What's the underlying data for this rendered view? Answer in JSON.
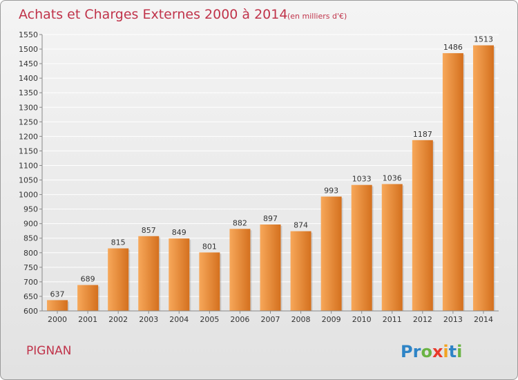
{
  "header": {
    "title": "Achats et Charges Externes 2000 à 2014",
    "subtitle": "(en milliers d'€)"
  },
  "footer": {
    "town": "PIGNAN",
    "brand": "Proxiti",
    "brand_letters": [
      {
        "ch": "P",
        "color": "#2e84c6"
      },
      {
        "ch": "r",
        "color": "#2e84c6"
      },
      {
        "ch": "o",
        "color": "#6ab344"
      },
      {
        "ch": "x",
        "color": "#e8392b"
      },
      {
        "ch": "i",
        "color": "#f2a321"
      },
      {
        "ch": "t",
        "color": "#2e84c6"
      },
      {
        "ch": "i",
        "color": "#6ab344"
      }
    ]
  },
  "colors": {
    "bar_light": "#f7a85a",
    "bar_dark": "#d4701e",
    "accent": "#c0334a",
    "grid": "#ffffff"
  },
  "chart_data": {
    "type": "bar",
    "title": "Achats et Charges Externes 2000 à 2014",
    "subtitle": "(en milliers d'€)",
    "categories": [
      "2000",
      "2001",
      "2002",
      "2003",
      "2004",
      "2005",
      "2006",
      "2007",
      "2008",
      "2009",
      "2010",
      "2011",
      "2012",
      "2013",
      "2014"
    ],
    "values": [
      637,
      689,
      815,
      857,
      849,
      801,
      882,
      897,
      874,
      993,
      1033,
      1036,
      1187,
      1486,
      1513
    ],
    "value_labels": [
      "637",
      "689",
      "815",
      "857",
      "849",
      "801",
      "882",
      "897",
      "874",
      "993",
      "1033",
      "1036",
      "1187",
      "1486",
      "1513"
    ],
    "ylim": [
      600,
      1550
    ],
    "yticks": [
      600,
      650,
      700,
      750,
      800,
      850,
      900,
      950,
      1000,
      1050,
      1100,
      1150,
      1200,
      1250,
      1300,
      1350,
      1400,
      1450,
      1500,
      1550
    ],
    "ytick_labels": [
      "600",
      "650",
      "700",
      "750",
      "800",
      "850",
      "900",
      "950",
      "1000",
      "1050",
      "1100",
      "1150",
      "1200",
      "1250",
      "1300",
      "1350",
      "1400",
      "1450",
      "1500",
      "1550"
    ],
    "grid": true,
    "xlabel": "",
    "ylabel": ""
  }
}
